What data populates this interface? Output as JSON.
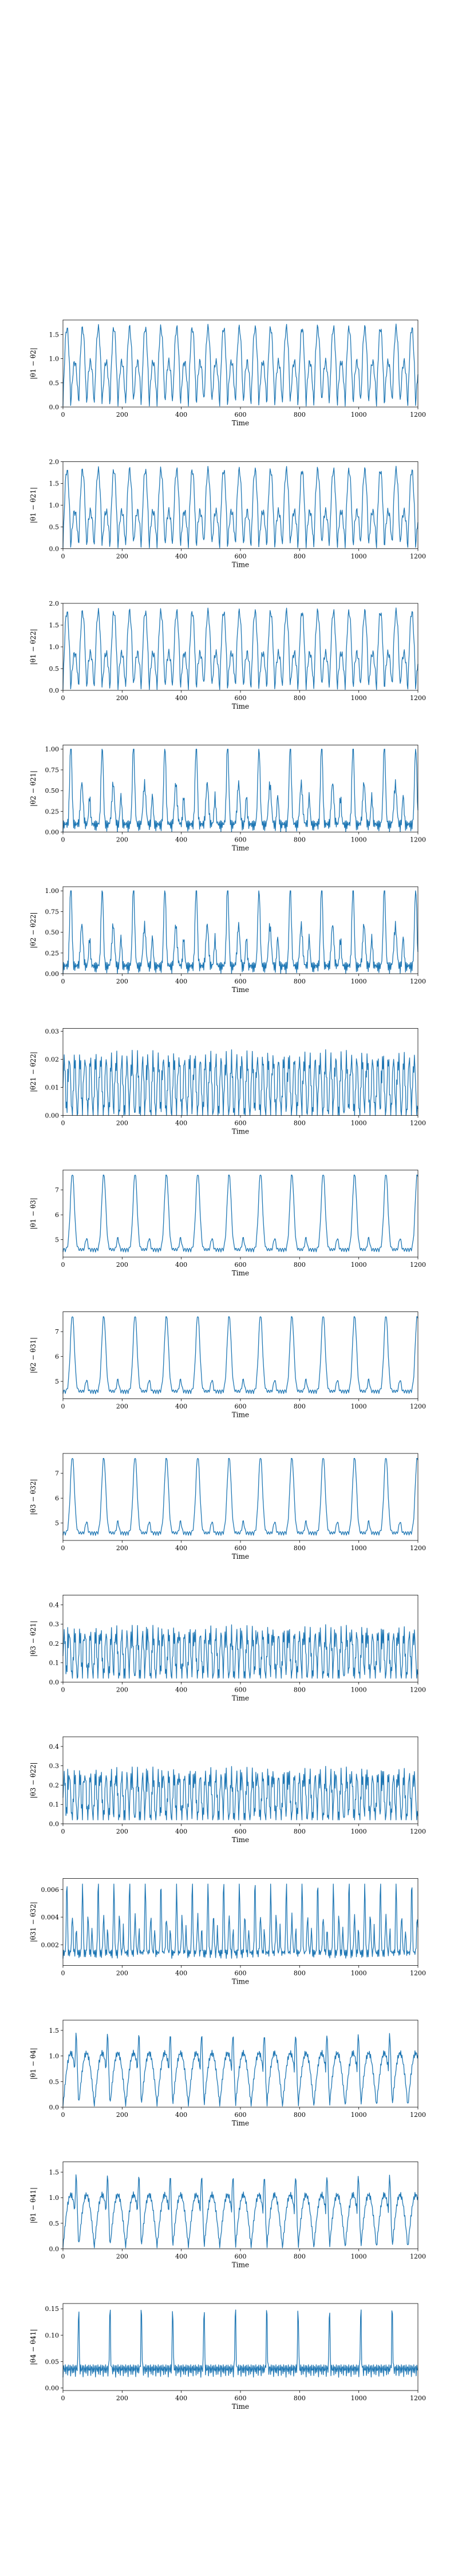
{
  "chart_data": [
    {
      "type": "line",
      "ylabel": "|θ1 − θ2|",
      "xlabel": "Time",
      "xlim": [
        0,
        1200
      ],
      "ylim": [
        0,
        1.8
      ],
      "xticks": [
        0,
        200,
        400,
        600,
        800,
        1000,
        1200
      ],
      "yticks": [
        0.0,
        0.5,
        1.0,
        1.5
      ],
      "ytick_labels": [
        "0.0",
        "0.5",
        "1.0",
        "1.5"
      ],
      "period": 53,
      "shape": "double",
      "min": 0.02,
      "max": 1.72,
      "alt": 0.8,
      "color": "#1f77b4"
    },
    {
      "type": "line",
      "ylabel": "|θ1 − θ21|",
      "xlabel": "Time",
      "xlim": [
        0,
        1200
      ],
      "ylim": [
        0,
        2.0
      ],
      "xticks": [
        0,
        200,
        400,
        600,
        800,
        1000,
        1200
      ],
      "yticks": [
        0.0,
        0.5,
        1.0,
        1.5,
        2.0
      ],
      "ytick_labels": [
        "0.0",
        "0.5",
        "1.0",
        "1.5",
        "2.0"
      ],
      "period": 53,
      "shape": "double",
      "min": 0.02,
      "max": 1.9,
      "alt": 0.7,
      "color": "#1f77b4"
    },
    {
      "type": "line",
      "ylabel": "|θ1 − θ22|",
      "xlabel": "Time",
      "xlim": [
        0,
        1200
      ],
      "ylim": [
        0,
        2.0
      ],
      "xticks": [
        0,
        200,
        400,
        600,
        800,
        1000,
        1200
      ],
      "yticks": [
        0.0,
        0.5,
        1.0,
        1.5,
        2.0
      ],
      "ytick_labels": [
        "0.0",
        "0.5",
        "1.0",
        "1.5",
        "2.0"
      ],
      "period": 53,
      "shape": "double",
      "min": 0.02,
      "max": 1.9,
      "alt": 0.7,
      "color": "#1f77b4"
    },
    {
      "type": "line",
      "ylabel": "|θ2 − θ21|",
      "xlabel": "Time",
      "xlim": [
        0,
        1200
      ],
      "ylim": [
        0,
        1.05
      ],
      "xticks": [
        0,
        200,
        400,
        600,
        800,
        1000,
        1200
      ],
      "yticks": [
        0.0,
        0.25,
        0.5,
        0.75,
        1.0
      ],
      "ytick_labels": [
        "0.00",
        "0.25",
        "0.50",
        "0.75",
        "1.00"
      ],
      "period": 106,
      "shape": "spiky",
      "min": 0.0,
      "max": 1.0,
      "alt": 0.55,
      "color": "#1f77b4"
    },
    {
      "type": "line",
      "ylabel": "|θ2 − θ22|",
      "xlabel": "Time",
      "xlim": [
        0,
        1200
      ],
      "ylim": [
        0,
        1.05
      ],
      "xticks": [
        0,
        200,
        400,
        600,
        800,
        1000,
        1200
      ],
      "yticks": [
        0.0,
        0.25,
        0.5,
        0.75,
        1.0
      ],
      "ytick_labels": [
        "0.00",
        "0.25",
        "0.50",
        "0.75",
        "1.00"
      ],
      "period": 106,
      "shape": "spiky",
      "min": 0.0,
      "max": 1.0,
      "alt": 0.55,
      "color": "#1f77b4"
    },
    {
      "type": "line",
      "ylabel": "|θ21 − θ22|",
      "xlabel": "Time",
      "xlim": [
        0,
        1200
      ],
      "ylim": [
        0,
        0.031
      ],
      "xticks": [
        0,
        200,
        400,
        600,
        800,
        1000,
        1200
      ],
      "yticks": [
        0.0,
        0.01,
        0.02,
        0.03
      ],
      "ytick_labels": [
        "0.00",
        "0.01",
        "0.02",
        "0.03"
      ],
      "period": 53,
      "shape": "noisy",
      "min": 0.0,
      "max": 0.029,
      "alt": 0.02,
      "color": "#1f77b4"
    },
    {
      "type": "line",
      "ylabel": "|θ1 − θ3|",
      "xlabel": "Time",
      "xlim": [
        0,
        1200
      ],
      "ylim": [
        4.3,
        7.8
      ],
      "xticks": [
        0,
        200,
        400,
        600,
        800,
        1000,
        1200
      ],
      "yticks": [
        5,
        6,
        7
      ],
      "ytick_labels": [
        "5",
        "6",
        "7"
      ],
      "period": 106,
      "shape": "tall",
      "min": 4.5,
      "max": 7.6,
      "alt": 5.8,
      "color": "#1f77b4"
    },
    {
      "type": "line",
      "ylabel": "|θ2 − θ31|",
      "xlabel": "Time",
      "xlim": [
        0,
        1200
      ],
      "ylim": [
        4.3,
        7.8
      ],
      "xticks": [
        0,
        200,
        400,
        600,
        800,
        1000,
        1200
      ],
      "yticks": [
        5,
        6,
        7
      ],
      "ytick_labels": [
        "5",
        "6",
        "7"
      ],
      "period": 106,
      "shape": "tall",
      "min": 4.5,
      "max": 7.6,
      "alt": 5.8,
      "color": "#1f77b4"
    },
    {
      "type": "line",
      "ylabel": "|θ3 − θ32|",
      "xlabel": "Time",
      "xlim": [
        0,
        1200
      ],
      "ylim": [
        4.3,
        7.8
      ],
      "xticks": [
        0,
        200,
        400,
        600,
        800,
        1000,
        1200
      ],
      "yticks": [
        5,
        6,
        7
      ],
      "ytick_labels": [
        "5",
        "6",
        "7"
      ],
      "period": 106,
      "shape": "tall",
      "min": 4.5,
      "max": 7.6,
      "alt": 5.8,
      "color": "#1f77b4"
    },
    {
      "type": "line",
      "ylabel": "|θ3 − θ21|",
      "xlabel": "Time",
      "xlim": [
        0,
        1200
      ],
      "ylim": [
        0,
        0.45
      ],
      "xticks": [
        0,
        200,
        400,
        600,
        800,
        1000,
        1200
      ],
      "yticks": [
        0.0,
        0.1,
        0.2,
        0.3,
        0.4
      ],
      "ytick_labels": [
        "0.0",
        "0.1",
        "0.2",
        "0.3",
        "0.4"
      ],
      "period": 53,
      "shape": "noisy",
      "min": 0.02,
      "max": 0.42,
      "alt": 0.25,
      "color": "#1f77b4"
    },
    {
      "type": "line",
      "ylabel": "|θ3 − θ22|",
      "xlabel": "Time",
      "xlim": [
        0,
        1200
      ],
      "ylim": [
        0,
        0.45
      ],
      "xticks": [
        0,
        200,
        400,
        600,
        800,
        1000,
        1200
      ],
      "yticks": [
        0.0,
        0.1,
        0.2,
        0.3,
        0.4
      ],
      "ytick_labels": [
        "0.0",
        "0.1",
        "0.2",
        "0.3",
        "0.4"
      ],
      "period": 53,
      "shape": "noisy",
      "min": 0.02,
      "max": 0.42,
      "alt": 0.25,
      "color": "#1f77b4"
    },
    {
      "type": "line",
      "ylabel": "|θ31 − θ32|",
      "xlabel": "Time",
      "xlim": [
        0,
        1200
      ],
      "ylim": [
        0.0005,
        0.0068
      ],
      "xticks": [
        0,
        200,
        400,
        600,
        800,
        1000,
        1200
      ],
      "yticks": [
        0.002,
        0.004,
        0.006
      ],
      "ytick_labels": [
        "0.002",
        "0.004",
        "0.006"
      ],
      "period": 53,
      "shape": "spiky",
      "min": 0.001,
      "max": 0.0064,
      "alt": 0.0035,
      "color": "#1f77b4"
    },
    {
      "type": "line",
      "ylabel": "|θ1 − θ4|",
      "xlabel": "Time",
      "xlim": [
        0,
        1200
      ],
      "ylim": [
        0,
        1.7
      ],
      "xticks": [
        0,
        200,
        400,
        600,
        800,
        1000,
        1200
      ],
      "yticks": [
        0.0,
        0.5,
        1.0,
        1.5
      ],
      "ytick_labels": [
        "0.0",
        "0.5",
        "1.0",
        "1.5"
      ],
      "period": 106,
      "shape": "plateau",
      "min": 0.02,
      "max": 1.5,
      "alt": 1.1,
      "color": "#1f77b4"
    },
    {
      "type": "line",
      "ylabel": "|θ1 − θ41|",
      "xlabel": "Time",
      "xlim": [
        0,
        1200
      ],
      "ylim": [
        0,
        1.7
      ],
      "xticks": [
        0,
        200,
        400,
        600,
        800,
        1000,
        1200
      ],
      "yticks": [
        0.0,
        0.5,
        1.0,
        1.5
      ],
      "ytick_labels": [
        "0.0",
        "0.5",
        "1.0",
        "1.5"
      ],
      "period": 106,
      "shape": "plateau",
      "min": 0.02,
      "max": 1.5,
      "alt": 1.1,
      "color": "#1f77b4"
    },
    {
      "type": "line",
      "ylabel": "|θ4 − θ41|",
      "xlabel": "Time",
      "xlim": [
        0,
        1200
      ],
      "ylim": [
        -0.005,
        0.16
      ],
      "xticks": [
        0,
        200,
        400,
        600,
        800,
        1000,
        1200
      ],
      "yticks": [
        0.0,
        0.05,
        0.1,
        0.15
      ],
      "ytick_labels": [
        "0.00",
        "0.05",
        "0.10",
        "0.15"
      ],
      "period": 106,
      "shape": "burst",
      "min": 0.02,
      "max": 0.15,
      "alt": 0.06,
      "color": "#1f77b4"
    }
  ]
}
